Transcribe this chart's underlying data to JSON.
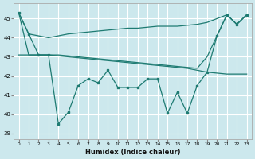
{
  "xlabel": "Humidex (Indice chaleur)",
  "xlim": [
    -0.5,
    23.5
  ],
  "ylim": [
    38.7,
    45.8
  ],
  "yticks": [
    39,
    40,
    41,
    42,
    43,
    44,
    45
  ],
  "xticks": [
    0,
    1,
    2,
    3,
    4,
    5,
    6,
    7,
    8,
    9,
    10,
    11,
    12,
    13,
    14,
    15,
    16,
    17,
    18,
    19,
    20,
    21,
    22,
    23
  ],
  "background_color": "#cce8ed",
  "grid_color": "#ffffff",
  "line_color": "#1e7b72",
  "series": [
    {
      "data": [
        45.3,
        44.2,
        44.1,
        44.0,
        44.1,
        44.2,
        44.25,
        44.3,
        44.35,
        44.4,
        44.45,
        44.5,
        44.5,
        44.55,
        44.6,
        44.6,
        44.6,
        44.65,
        44.7,
        44.8,
        45.0,
        45.2,
        44.7,
        45.2
      ],
      "markers": false,
      "lw": 0.9
    },
    {
      "data": [
        45.3,
        43.1,
        43.1,
        43.1,
        43.1,
        43.05,
        43.0,
        42.95,
        42.9,
        42.85,
        42.8,
        42.75,
        42.7,
        42.65,
        42.6,
        42.55,
        42.5,
        42.45,
        42.4,
        43.0,
        44.1,
        45.2,
        44.7,
        45.2
      ],
      "markers": false,
      "lw": 0.9
    },
    {
      "data": [
        43.1,
        43.1,
        43.1,
        43.1,
        43.05,
        43.0,
        42.95,
        42.9,
        42.85,
        42.8,
        42.75,
        42.7,
        42.65,
        42.6,
        42.55,
        42.5,
        42.45,
        42.4,
        42.3,
        42.2,
        42.15,
        42.1,
        42.1,
        42.1
      ],
      "markers": false,
      "lw": 0.9
    },
    {
      "data": [
        45.3,
        44.2,
        43.1,
        43.1,
        39.5,
        40.1,
        41.5,
        41.85,
        41.65,
        42.3,
        41.4,
        41.4,
        41.4,
        41.85,
        41.85,
        40.05,
        41.15,
        40.05,
        41.5,
        42.2,
        44.1,
        45.2,
        44.7,
        45.2
      ],
      "markers": true,
      "lw": 0.9
    }
  ]
}
